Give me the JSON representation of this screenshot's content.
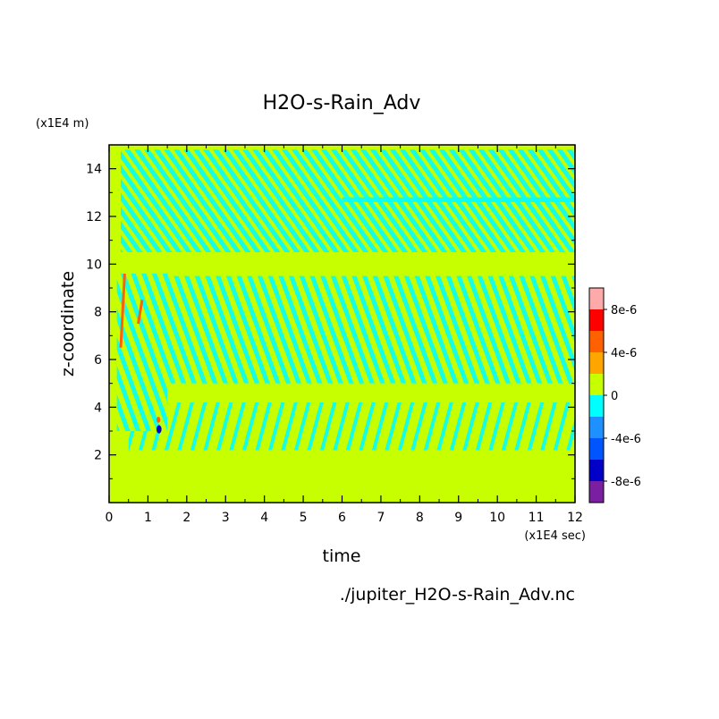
{
  "chart_data": {
    "type": "heatmap",
    "title": "H2O-s-Rain_Adv",
    "xlabel": "time",
    "ylabel": "z-coordinate",
    "x_unit_label": "(x1E4 sec)",
    "y_unit_label": "(x1E4 m)",
    "source_label": "./jupiter_H2O-s-Rain_Adv.nc",
    "xlim": [
      0,
      12
    ],
    "ylim": [
      0,
      15
    ],
    "x_ticks": [
      "0",
      "1",
      "2",
      "3",
      "4",
      "5",
      "6",
      "7",
      "8",
      "9",
      "10",
      "11",
      "12"
    ],
    "y_ticks": [
      "2",
      "4",
      "6",
      "8",
      "10",
      "12",
      "14"
    ],
    "grid": false,
    "background_level": "0",
    "features": [
      {
        "name": "upper-band",
        "x": [
          0.3,
          12
        ],
        "y": [
          10.5,
          14.8
        ],
        "level": "-4e-6 to 0"
      },
      {
        "name": "mid-band",
        "x": [
          1.5,
          12
        ],
        "y": [
          5,
          9.5
        ],
        "level": "-4e-6 to 0"
      },
      {
        "name": "lower-band",
        "x": [
          0.5,
          12
        ],
        "y": [
          2.2,
          4.2
        ],
        "level": "-4e-6 to 0"
      },
      {
        "name": "early-plume",
        "x": [
          0.2,
          1.5
        ],
        "y": [
          3,
          9.6
        ],
        "level": "-4e-6 to 0"
      },
      {
        "name": "top-stripe",
        "x": [
          6,
          12
        ],
        "y": [
          12.6,
          12.8
        ],
        "level": "-4e-6 to 0"
      },
      {
        "name": "positive-streak-1",
        "x": [
          0.3,
          0.4
        ],
        "y": [
          6.5,
          9.6
        ],
        "level": "4e-6 to 8e-6"
      },
      {
        "name": "positive-streak-2",
        "x": [
          0.75,
          0.85
        ],
        "y": [
          7.5,
          8.5
        ],
        "level": "4e-6 to 8e-6"
      },
      {
        "name": "blob-positive",
        "x": [
          1.22,
          1.32
        ],
        "y": [
          3.35,
          3.6
        ],
        "level": "4e-6 to 8e-6"
      },
      {
        "name": "blob-negative",
        "x": [
          1.22,
          1.35
        ],
        "y": [
          2.9,
          3.25
        ],
        "level": "-8e-6 to -4e-6"
      }
    ],
    "colorbar": {
      "tick_labels": [
        "8e-6",
        "4e-6",
        "0",
        "-4e-6",
        "-8e-6"
      ],
      "colors": [
        "#7b1fa2",
        "#0000c8",
        "#0055ff",
        "#1e90ff",
        "#00ffff",
        "#c8ff00",
        "#ffa500",
        "#ff6000",
        "#ff0000",
        "#ffaaaa"
      ]
    }
  }
}
